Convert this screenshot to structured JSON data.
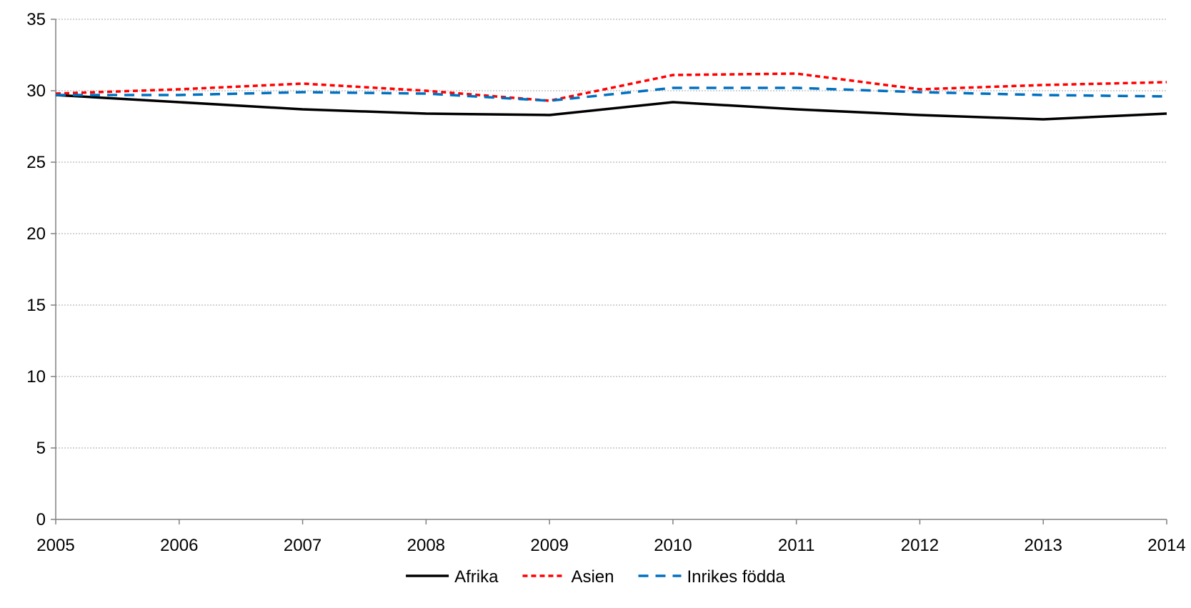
{
  "chart_data": {
    "type": "line",
    "title": "",
    "xlabel": "",
    "ylabel": "",
    "x": [
      "2005",
      "2006",
      "2007",
      "2008",
      "2009",
      "2010",
      "2011",
      "2012",
      "2013",
      "2014"
    ],
    "ylim": [
      0,
      35
    ],
    "yticks": [
      "0",
      "5",
      "10",
      "15",
      "20",
      "25",
      "30",
      "35"
    ],
    "grid": true,
    "legend_position": "bottom",
    "series": [
      {
        "name": "Afrika",
        "color": "#000000",
        "dash": "solid",
        "values": [
          29.7,
          29.2,
          28.7,
          28.4,
          28.3,
          29.2,
          28.7,
          28.3,
          28.0,
          28.4
        ]
      },
      {
        "name": "Asien",
        "color": "#ff0000",
        "dash": "dotted",
        "values": [
          29.8,
          30.1,
          30.5,
          30.0,
          29.3,
          31.1,
          31.2,
          30.1,
          30.4,
          30.6
        ]
      },
      {
        "name": "Inrikes födda",
        "color": "#0070c0",
        "dash": "dashed",
        "values": [
          29.7,
          29.7,
          29.9,
          29.8,
          29.3,
          30.2,
          30.2,
          29.9,
          29.7,
          29.6
        ]
      }
    ]
  }
}
